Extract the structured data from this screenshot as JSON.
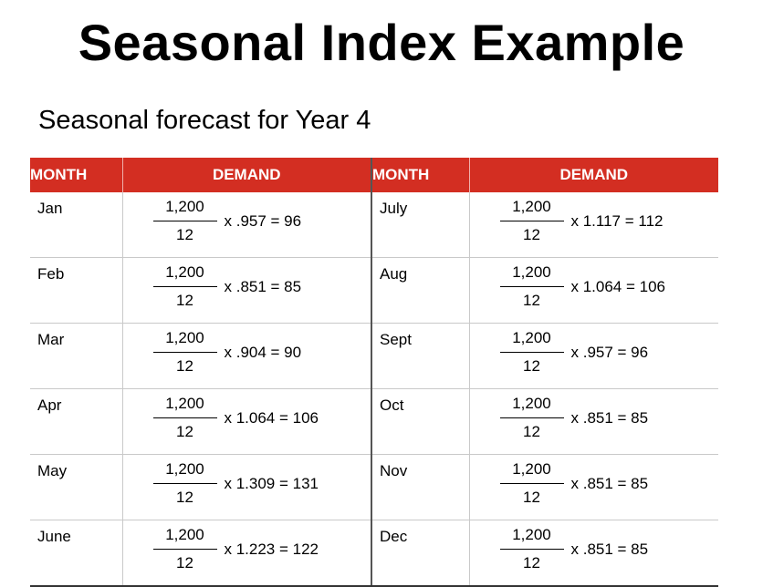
{
  "title": "Seasonal Index Example",
  "subtitle": "Seasonal forecast for Year 4",
  "headers": {
    "month": "MONTH",
    "demand": "DEMAND"
  },
  "rows": [
    {
      "left": {
        "month": "Jan",
        "numerator": "1,200",
        "denominator": "12",
        "multiplier": "x .957 = 96"
      },
      "right": {
        "month": "July",
        "numerator": "1,200",
        "denominator": "12",
        "multiplier": "x 1.117 = 112"
      }
    },
    {
      "left": {
        "month": "Feb",
        "numerator": "1,200",
        "denominator": "12",
        "multiplier": "x .851 = 85"
      },
      "right": {
        "month": "Aug",
        "numerator": "1,200",
        "denominator": "12",
        "multiplier": "x 1.064 = 106"
      }
    },
    {
      "left": {
        "month": "Mar",
        "numerator": "1,200",
        "denominator": "12",
        "multiplier": "x .904 = 90"
      },
      "right": {
        "month": "Sept",
        "numerator": "1,200",
        "denominator": "12",
        "multiplier": "x .957 = 96"
      }
    },
    {
      "left": {
        "month": "Apr",
        "numerator": "1,200",
        "denominator": "12",
        "multiplier": "x 1.064 = 106"
      },
      "right": {
        "month": "Oct",
        "numerator": "1,200",
        "denominator": "12",
        "multiplier": "x .851 = 85"
      }
    },
    {
      "left": {
        "month": "May",
        "numerator": "1,200",
        "denominator": "12",
        "multiplier": "x 1.309 = 131"
      },
      "right": {
        "month": "Nov",
        "numerator": "1,200",
        "denominator": "12",
        "multiplier": "x .851 = 85"
      }
    },
    {
      "left": {
        "month": "June",
        "numerator": "1,200",
        "denominator": "12",
        "multiplier": "x 1.223 = 122"
      },
      "right": {
        "month": "Dec",
        "numerator": "1,200",
        "denominator": "12",
        "multiplier": "x .851 = 85"
      }
    }
  ],
  "colors": {
    "header_bg": "#d32e22",
    "header_text": "#ffffff",
    "grid": "#c9c9c9"
  }
}
